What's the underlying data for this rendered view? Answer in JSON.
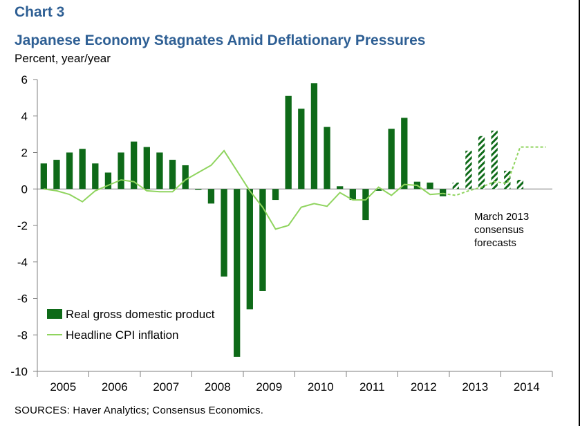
{
  "header": {
    "chart_number": "Chart 3",
    "title": "Japanese Economy Stagnates Amid Deflationary Pressures",
    "units": "Percent, year/year"
  },
  "annotation": {
    "lines": [
      "March 2013",
      "consensus",
      "forecasts"
    ]
  },
  "footer": {
    "sources": "SOURCES:  Haver Analytics; Consensus Economics."
  },
  "colors": {
    "gdp_bar": "#0e6a18",
    "cpi_line": "#8fd45e",
    "title": "#2e5f94",
    "axis": "#7f7f7f"
  },
  "chart_data": {
    "type": "bar",
    "title": "Japanese Economy Stagnates Amid Deflationary Pressures",
    "ylabel": "Percent, year/year",
    "ylim": [
      -10,
      6
    ],
    "yticks": [
      6,
      4,
      2,
      0,
      -2,
      -4,
      -6,
      -8,
      -10
    ],
    "year_labels": [
      "2005",
      "2006",
      "2007",
      "2008",
      "2009",
      "2010",
      "2011",
      "2012",
      "2013",
      "2014"
    ],
    "x": [
      "2005Q1",
      "2005Q2",
      "2005Q3",
      "2005Q4",
      "2006Q1",
      "2006Q2",
      "2006Q3",
      "2006Q4",
      "2007Q1",
      "2007Q2",
      "2007Q3",
      "2007Q4",
      "2008Q1",
      "2008Q2",
      "2008Q3",
      "2008Q4",
      "2009Q1",
      "2009Q2",
      "2009Q3",
      "2009Q4",
      "2010Q1",
      "2010Q2",
      "2010Q3",
      "2010Q4",
      "2011Q1",
      "2011Q2",
      "2011Q3",
      "2011Q4",
      "2012Q1",
      "2012Q2",
      "2012Q3",
      "2012Q4",
      "2013Q1",
      "2013Q2",
      "2013Q3",
      "2013Q4",
      "2014Q1",
      "2014Q2",
      "2014Q3",
      "2014Q4"
    ],
    "forecast_start": "2012Q4",
    "legend_position": "bottom-left",
    "grid": false,
    "series": [
      {
        "name": "Real gross domestic product",
        "type": "bar",
        "values": [
          1.4,
          1.6,
          2.0,
          2.2,
          1.4,
          0.9,
          2.0,
          2.6,
          2.3,
          2.0,
          1.6,
          1.3,
          -0.05,
          -0.8,
          -4.8,
          -9.2,
          -6.6,
          -5.6,
          -0.6,
          5.1,
          4.4,
          5.8,
          3.4,
          0.15,
          -0.6,
          -1.7,
          -0.1,
          3.3,
          3.9,
          0.4,
          0.35,
          -0.4,
          0.35,
          2.1,
          2.9,
          3.2,
          1.0,
          0.5,
          null,
          null
        ]
      },
      {
        "name": "Headline CPI inflation",
        "type": "line",
        "values": [
          0.0,
          -0.1,
          -0.3,
          -0.7,
          -0.1,
          0.2,
          0.5,
          0.4,
          -0.1,
          -0.15,
          -0.15,
          0.5,
          0.9,
          1.3,
          2.1,
          1.0,
          -0.1,
          -1.0,
          -2.2,
          -2.0,
          -1.0,
          -0.8,
          -0.95,
          -0.2,
          -0.6,
          -0.6,
          0.1,
          -0.35,
          0.25,
          0.2,
          -0.3,
          -0.25,
          -0.35,
          -0.1,
          0.1,
          0.4,
          0.3,
          2.3,
          2.3,
          2.3
        ]
      }
    ]
  }
}
